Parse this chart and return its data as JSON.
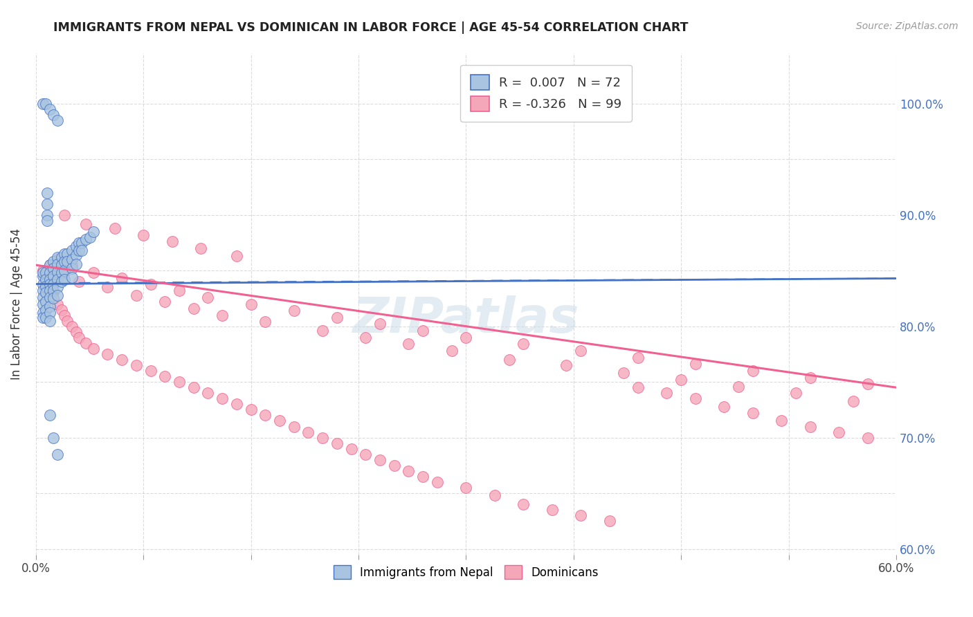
{
  "title": "IMMIGRANTS FROM NEPAL VS DOMINICAN IN LABOR FORCE | AGE 45-54 CORRELATION CHART",
  "source": "Source: ZipAtlas.com",
  "ylabel": "In Labor Force | Age 45-54",
  "right_yticks": [
    "100.0%",
    "90.0%",
    "80.0%",
    "70.0%",
    "60.0%"
  ],
  "right_ytick_vals": [
    1.0,
    0.9,
    0.8,
    0.7,
    0.6
  ],
  "xlim": [
    0.0,
    0.6
  ],
  "ylim": [
    0.595,
    1.045
  ],
  "nepal_R": 0.007,
  "nepal_N": 72,
  "dominican_R": -0.326,
  "dominican_N": 99,
  "nepal_color": "#a8c4e0",
  "dominican_color": "#f4a7b9",
  "nepal_line_color": "#4472c4",
  "dominican_line_color": "#f06090",
  "nepal_scatter_x": [
    0.005,
    0.005,
    0.005,
    0.005,
    0.005,
    0.005,
    0.005,
    0.005,
    0.007,
    0.007,
    0.007,
    0.007,
    0.007,
    0.007,
    0.007,
    0.01,
    0.01,
    0.01,
    0.01,
    0.01,
    0.01,
    0.01,
    0.01,
    0.01,
    0.012,
    0.012,
    0.012,
    0.012,
    0.012,
    0.012,
    0.015,
    0.015,
    0.015,
    0.015,
    0.015,
    0.015,
    0.018,
    0.018,
    0.018,
    0.018,
    0.02,
    0.02,
    0.02,
    0.02,
    0.022,
    0.022,
    0.025,
    0.025,
    0.025,
    0.025,
    0.028,
    0.028,
    0.028,
    0.03,
    0.03,
    0.032,
    0.032,
    0.035,
    0.038,
    0.04,
    0.005,
    0.007,
    0.01,
    0.012,
    0.015,
    0.008,
    0.008,
    0.008,
    0.008,
    0.01,
    0.012,
    0.015
  ],
  "nepal_scatter_y": [
    0.845,
    0.848,
    0.838,
    0.832,
    0.826,
    0.82,
    0.812,
    0.808,
    0.848,
    0.842,
    0.836,
    0.83,
    0.822,
    0.815,
    0.808,
    0.855,
    0.848,
    0.842,
    0.838,
    0.832,
    0.826,
    0.818,
    0.812,
    0.805,
    0.858,
    0.852,
    0.845,
    0.838,
    0.832,
    0.825,
    0.862,
    0.856,
    0.849,
    0.842,
    0.835,
    0.828,
    0.862,
    0.855,
    0.848,
    0.84,
    0.865,
    0.858,
    0.85,
    0.842,
    0.865,
    0.858,
    0.868,
    0.86,
    0.852,
    0.844,
    0.872,
    0.864,
    0.856,
    0.875,
    0.868,
    0.875,
    0.868,
    0.878,
    0.88,
    0.885,
    1.0,
    1.0,
    0.995,
    0.99,
    0.985,
    0.92,
    0.91,
    0.9,
    0.895,
    0.72,
    0.7,
    0.685
  ],
  "dominican_scatter_x": [
    0.005,
    0.008,
    0.01,
    0.012,
    0.015,
    0.018,
    0.02,
    0.022,
    0.025,
    0.028,
    0.03,
    0.035,
    0.04,
    0.05,
    0.06,
    0.07,
    0.08,
    0.09,
    0.1,
    0.11,
    0.12,
    0.13,
    0.14,
    0.15,
    0.16,
    0.17,
    0.18,
    0.19,
    0.2,
    0.21,
    0.22,
    0.23,
    0.24,
    0.25,
    0.26,
    0.27,
    0.28,
    0.3,
    0.32,
    0.34,
    0.36,
    0.38,
    0.4,
    0.42,
    0.44,
    0.46,
    0.48,
    0.5,
    0.52,
    0.54,
    0.56,
    0.58,
    0.015,
    0.025,
    0.04,
    0.06,
    0.08,
    0.1,
    0.12,
    0.15,
    0.18,
    0.21,
    0.24,
    0.27,
    0.3,
    0.34,
    0.38,
    0.42,
    0.46,
    0.5,
    0.54,
    0.58,
    0.01,
    0.02,
    0.03,
    0.05,
    0.07,
    0.09,
    0.11,
    0.13,
    0.16,
    0.2,
    0.23,
    0.26,
    0.29,
    0.33,
    0.37,
    0.41,
    0.45,
    0.49,
    0.53,
    0.57,
    0.02,
    0.035,
    0.055,
    0.075,
    0.095,
    0.115,
    0.14
  ],
  "dominican_scatter_y": [
    0.85,
    0.84,
    0.835,
    0.83,
    0.82,
    0.815,
    0.81,
    0.805,
    0.8,
    0.795,
    0.79,
    0.785,
    0.78,
    0.775,
    0.77,
    0.765,
    0.76,
    0.755,
    0.75,
    0.745,
    0.74,
    0.735,
    0.73,
    0.725,
    0.72,
    0.715,
    0.71,
    0.705,
    0.7,
    0.695,
    0.69,
    0.685,
    0.68,
    0.675,
    0.67,
    0.665,
    0.66,
    0.655,
    0.648,
    0.64,
    0.635,
    0.63,
    0.625,
    0.745,
    0.74,
    0.735,
    0.728,
    0.722,
    0.715,
    0.71,
    0.705,
    0.7,
    0.86,
    0.855,
    0.848,
    0.843,
    0.838,
    0.832,
    0.826,
    0.82,
    0.814,
    0.808,
    0.802,
    0.796,
    0.79,
    0.784,
    0.778,
    0.772,
    0.766,
    0.76,
    0.754,
    0.748,
    0.855,
    0.848,
    0.84,
    0.835,
    0.828,
    0.822,
    0.816,
    0.81,
    0.804,
    0.796,
    0.79,
    0.784,
    0.778,
    0.77,
    0.765,
    0.758,
    0.752,
    0.746,
    0.74,
    0.733,
    0.9,
    0.892,
    0.888,
    0.882,
    0.876,
    0.87,
    0.863
  ],
  "nepal_trend_x": [
    0.0,
    0.6
  ],
  "nepal_trend_y": [
    0.838,
    0.843
  ],
  "dominican_trend_x": [
    0.0,
    0.6
  ],
  "dominican_trend_y": [
    0.855,
    0.745
  ],
  "watermark": "ZIPatlas",
  "background_color": "#ffffff",
  "grid_color": "#cccccc"
}
